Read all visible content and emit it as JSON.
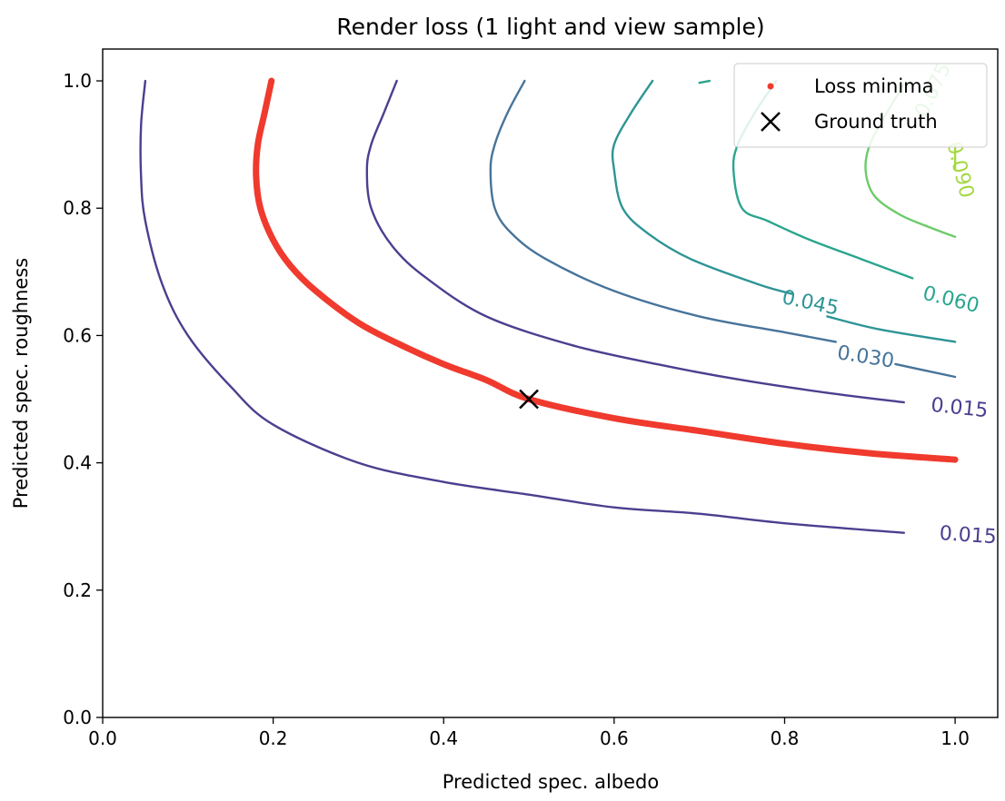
{
  "chart_data": {
    "type": "line",
    "title": "Render loss (1 light and view sample)",
    "xlabel": "Predicted spec. albedo",
    "ylabel": "Predicted spec. roughness",
    "xlim": [
      0.0,
      1.05
    ],
    "ylim": [
      0.0,
      1.05
    ],
    "xticks": [
      0.0,
      0.2,
      0.4,
      0.6,
      0.8,
      1.0
    ],
    "yticks": [
      0.0,
      0.2,
      0.4,
      0.6,
      0.8,
      1.0
    ],
    "xtick_labels": [
      "0.0",
      "0.2",
      "0.4",
      "0.6",
      "0.8",
      "1.0"
    ],
    "ytick_labels": [
      "0.0",
      "0.2",
      "0.4",
      "0.6",
      "0.8",
      "1.0"
    ],
    "grid": false,
    "legend_position": "top-right",
    "legend": [
      {
        "label": "Loss minima",
        "marker": "dot",
        "color": "#f03a2e"
      },
      {
        "label": "Ground truth",
        "marker": "x",
        "color": "#000000"
      }
    ],
    "contours": [
      {
        "level": "0.015",
        "color": "#4b3f8f",
        "points": [
          [
            0.05,
            1.0
          ],
          [
            0.045,
            0.93
          ],
          [
            0.045,
            0.85
          ],
          [
            0.05,
            0.78
          ],
          [
            0.07,
            0.68
          ],
          [
            0.1,
            0.6
          ],
          [
            0.15,
            0.52
          ],
          [
            0.2,
            0.46
          ],
          [
            0.3,
            0.4
          ],
          [
            0.4,
            0.37
          ],
          [
            0.5,
            0.35
          ],
          [
            0.6,
            0.33
          ],
          [
            0.7,
            0.32
          ],
          [
            0.8,
            0.305
          ],
          [
            0.94,
            0.29
          ]
        ]
      },
      {
        "level": "0.015",
        "color": "#4b3f8f",
        "points": [
          [
            0.345,
            1.0
          ],
          [
            0.33,
            0.95
          ],
          [
            0.315,
            0.9
          ],
          [
            0.31,
            0.86
          ],
          [
            0.315,
            0.8
          ],
          [
            0.34,
            0.74
          ],
          [
            0.38,
            0.69
          ],
          [
            0.45,
            0.63
          ],
          [
            0.55,
            0.585
          ],
          [
            0.65,
            0.555
          ],
          [
            0.75,
            0.53
          ],
          [
            0.85,
            0.51
          ],
          [
            0.94,
            0.495
          ]
        ]
      },
      {
        "level": "0.030",
        "color": "#47749a",
        "points": [
          [
            0.495,
            1.0
          ],
          [
            0.475,
            0.95
          ],
          [
            0.46,
            0.9
          ],
          [
            0.455,
            0.86
          ],
          [
            0.46,
            0.8
          ],
          [
            0.48,
            0.76
          ],
          [
            0.52,
            0.72
          ],
          [
            0.6,
            0.67
          ],
          [
            0.7,
            0.63
          ],
          [
            0.8,
            0.605
          ],
          [
            0.86,
            0.59
          ]
        ]
      },
      {
        "level": "0.030",
        "color": "#47749a",
        "points": [
          [
            0.93,
            0.555
          ],
          [
            1.0,
            0.535
          ]
        ]
      },
      {
        "level": "0.045",
        "color": "#2e9495",
        "points": [
          [
            0.645,
            1.0
          ],
          [
            0.62,
            0.95
          ],
          [
            0.6,
            0.9
          ],
          [
            0.6,
            0.86
          ],
          [
            0.61,
            0.8
          ],
          [
            0.64,
            0.76
          ],
          [
            0.69,
            0.72
          ],
          [
            0.77,
            0.68
          ],
          [
            0.81,
            0.665
          ]
        ]
      },
      {
        "level": "0.045",
        "color": "#2e9495",
        "points": [
          [
            0.85,
            0.63
          ],
          [
            0.91,
            0.61
          ],
          [
            1.0,
            0.59
          ]
        ]
      },
      {
        "level": "0.060",
        "color": "#2aa58e",
        "points": [
          [
            0.79,
            1.0
          ],
          [
            0.765,
            0.95
          ],
          [
            0.745,
            0.9
          ],
          [
            0.74,
            0.86
          ],
          [
            0.75,
            0.8
          ],
          [
            0.78,
            0.78
          ],
          [
            0.83,
            0.75
          ],
          [
            0.89,
            0.72
          ],
          [
            0.95,
            0.69
          ]
        ]
      },
      {
        "level": "0.060",
        "color": "#2aa58e",
        "points": [
          [
            0.7,
            0.997
          ],
          [
            0.712,
            1.0
          ]
        ]
      },
      {
        "level": "0.075",
        "color": "#6ccb68",
        "points": [
          [
            0.94,
            0.995
          ],
          [
            0.92,
            0.95
          ],
          [
            0.9,
            0.9
          ],
          [
            0.895,
            0.86
          ],
          [
            0.905,
            0.82
          ],
          [
            0.935,
            0.79
          ],
          [
            0.97,
            0.77
          ],
          [
            1.0,
            0.755
          ]
        ]
      },
      {
        "level": "0.090",
        "color": "#a4d843",
        "points": [
          [
            1.0,
            0.86
          ],
          [
            1.0,
            0.9
          ]
        ]
      }
    ],
    "contour_labels": [
      {
        "text": "0.015",
        "x": 1.015,
        "y": 0.285,
        "color": "#4b3f8f",
        "rotate": 4
      },
      {
        "text": "0.015",
        "x": 1.005,
        "y": 0.485,
        "color": "#4b3f8f",
        "rotate": 6
      },
      {
        "text": "0.030",
        "x": 0.895,
        "y": 0.565,
        "color": "#47749a",
        "rotate": 9
      },
      {
        "text": "0.045",
        "x": 0.83,
        "y": 0.65,
        "color": "#2e9495",
        "rotate": 12
      },
      {
        "text": "0.060",
        "x": 0.995,
        "y": 0.655,
        "color": "#2aa58e",
        "rotate": 14
      },
      {
        "text": "0.075",
        "x": 0.975,
        "y": 0.985,
        "color": "#6ccb68",
        "rotate": -64
      },
      {
        "text": "0.090",
        "x": 1.005,
        "y": 0.86,
        "color": "#a4d843",
        "rotate": 76
      }
    ],
    "series": [
      {
        "name": "Loss minima",
        "color": "#f03a2e",
        "points": [
          [
            0.198,
            1.0
          ],
          [
            0.19,
            0.95
          ],
          [
            0.182,
            0.9
          ],
          [
            0.18,
            0.85
          ],
          [
            0.185,
            0.8
          ],
          [
            0.2,
            0.75
          ],
          [
            0.22,
            0.71
          ],
          [
            0.25,
            0.67
          ],
          [
            0.3,
            0.62
          ],
          [
            0.35,
            0.585
          ],
          [
            0.4,
            0.555
          ],
          [
            0.45,
            0.53
          ],
          [
            0.5,
            0.5
          ],
          [
            0.6,
            0.47
          ],
          [
            0.7,
            0.45
          ],
          [
            0.8,
            0.43
          ],
          [
            0.9,
            0.415
          ],
          [
            1.0,
            0.405
          ]
        ]
      },
      {
        "name": "Ground truth",
        "color": "#000000",
        "points": [
          [
            0.5,
            0.5
          ]
        ]
      }
    ]
  }
}
